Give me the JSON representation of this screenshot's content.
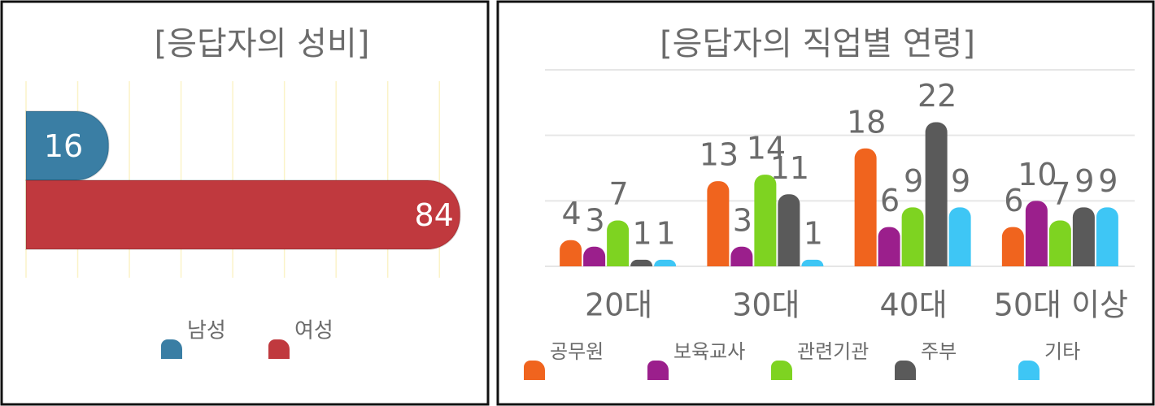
{
  "chart_data": [
    {
      "type": "hbar",
      "title": "[응답자의 성비]",
      "categories": [
        null
      ],
      "series": [
        {
          "name": "남성",
          "color": "#3a7ea4",
          "values": [
            16
          ]
        },
        {
          "name": "여성",
          "color": "#c0393e",
          "values": [
            84
          ]
        }
      ],
      "xlim": [
        0,
        85
      ],
      "xticks": [
        0,
        10,
        20,
        30,
        40,
        50,
        60,
        70,
        80
      ],
      "grid": true,
      "legend": "bottom"
    },
    {
      "type": "bar",
      "title": "[응답자의 직업별 연령]",
      "categories": [
        "20대",
        "30대",
        "40대",
        "50대 이상"
      ],
      "series": [
        {
          "name": "공무원",
          "color": "#f0641e",
          "values": [
            4,
            13,
            18,
            6
          ]
        },
        {
          "name": "보육교사",
          "color": "#9b1f8c",
          "values": [
            3,
            3,
            6,
            10
          ]
        },
        {
          "name": "관련기관",
          "color": "#7ed321",
          "values": [
            7,
            14,
            9,
            7
          ]
        },
        {
          "name": "주부",
          "color": "#5a5a5a",
          "values": [
            1,
            11,
            22,
            9
          ]
        },
        {
          "name": "기타",
          "color": "#3ec6f5",
          "values": [
            1,
            1,
            9,
            9
          ]
        }
      ],
      "ylim": [
        0,
        30
      ],
      "yticks": [
        0,
        10,
        20,
        30
      ],
      "grid": true,
      "legend": "bottom"
    }
  ]
}
